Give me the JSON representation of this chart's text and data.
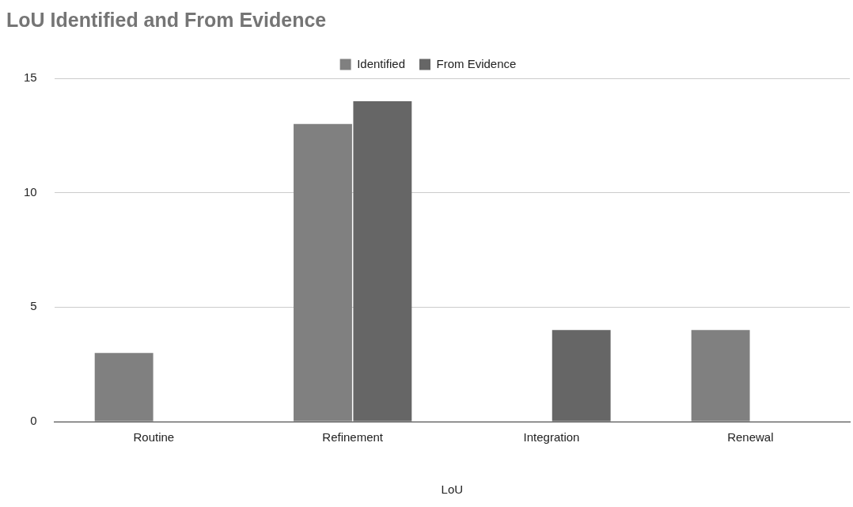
{
  "chart_data": {
    "type": "bar",
    "title": "LoU Identified and From Evidence",
    "xlabel": "LoU",
    "categories": [
      "Routine",
      "Refinement",
      "Integration",
      "Renewal"
    ],
    "series": [
      {
        "name": "Identified",
        "color": "#808080",
        "values": [
          3,
          13,
          0,
          4
        ]
      },
      {
        "name": "From Evidence",
        "color": "#666666",
        "values": [
          0,
          14,
          4,
          0
        ]
      }
    ],
    "ylim": [
      0,
      15
    ],
    "yticks": [
      0,
      5,
      10,
      15
    ],
    "grid": "y",
    "legend": "top"
  }
}
